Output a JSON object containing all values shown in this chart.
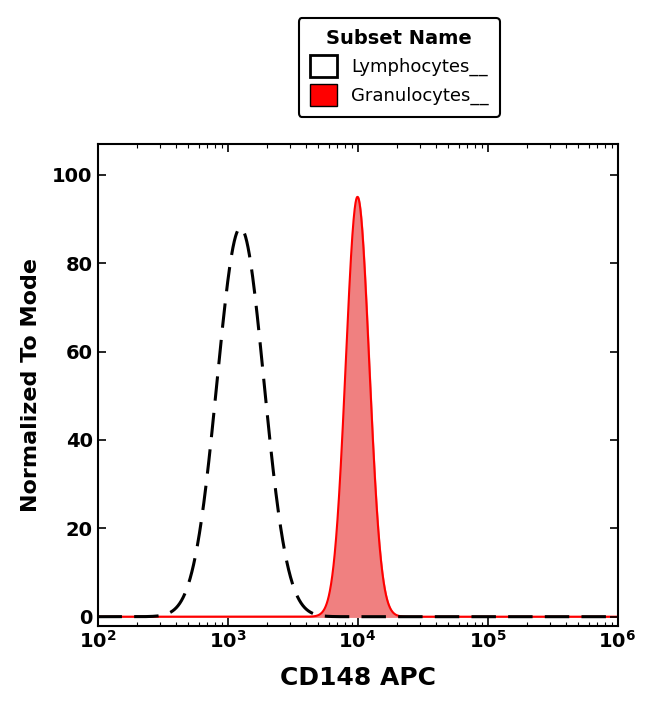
{
  "title": "CD148 APC",
  "ylabel": "Normalized To Mode",
  "xlabel": "CD148 APC",
  "xlim_log": [
    100.0,
    1000000.0
  ],
  "ylim": [
    -2,
    107
  ],
  "yticks": [
    0,
    20,
    40,
    60,
    80,
    100
  ],
  "lymphocyte_peak_log": 3.1,
  "lymphocyte_sigma_log": 0.18,
  "lymphocyte_peak_height": 88,
  "granulocyte_peak_log": 4.0,
  "granulocyte_sigma_log": 0.09,
  "granulocyte_peak_height": 95,
  "lymphocyte_color": "#000000",
  "granulocyte_fill_color": "#f08080",
  "granulocyte_edge_color": "#ff0000",
  "legend_title": "Subset Name",
  "legend_labels": [
    "Lymphocytes",
    "Granulocytes"
  ],
  "background_color": "#ffffff",
  "tick_label_fontsize": 14,
  "axis_label_fontsize": 16,
  "xlabel_fontsize": 18,
  "legend_fontsize": 13,
  "legend_title_fontsize": 14
}
